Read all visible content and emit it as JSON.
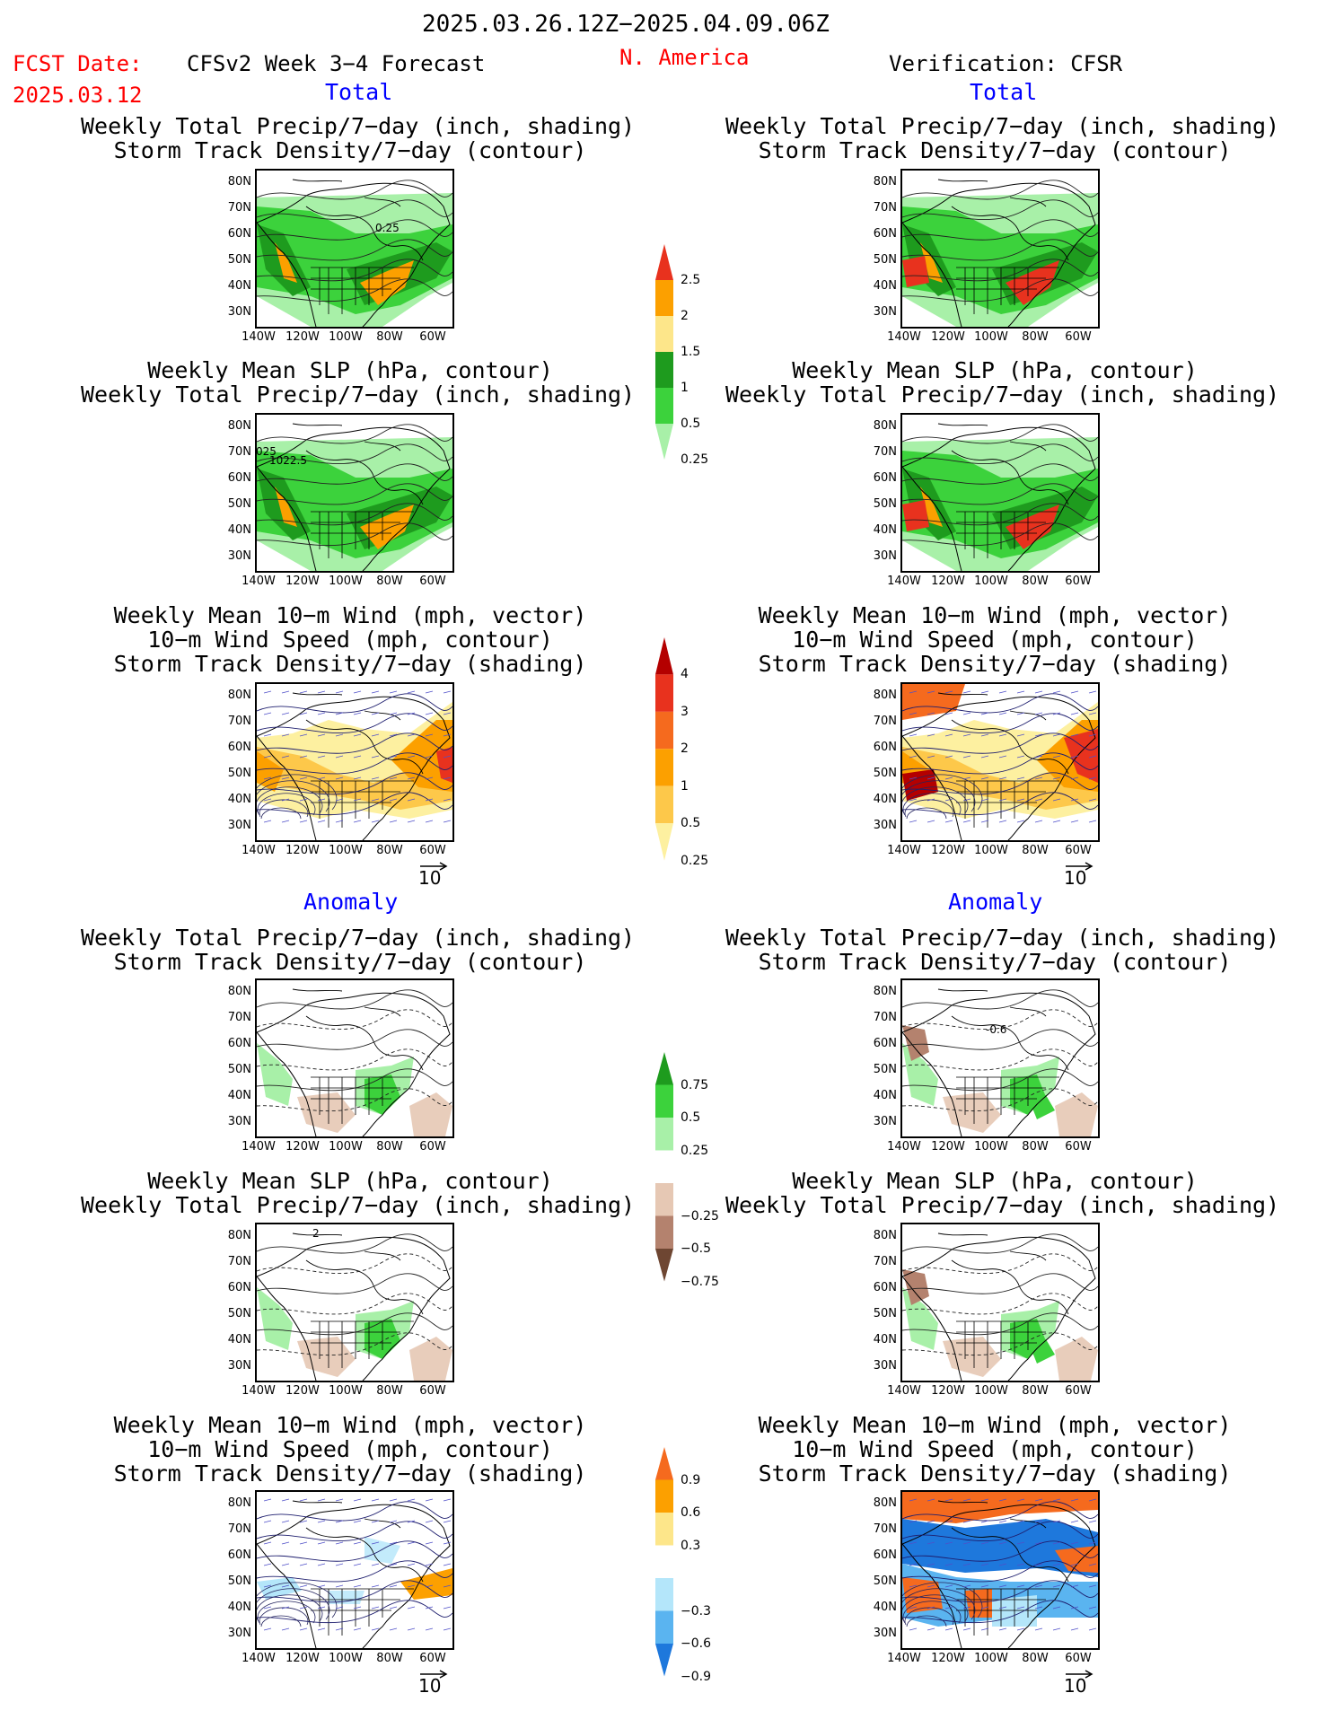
{
  "header": {
    "period": "2025.03.26.12Z−2025.04.09.06Z",
    "fcst_label": "FCST Date:",
    "fcst_date": "2025.03.12",
    "model": "CFSv2 Week 3−4 Forecast",
    "region": "N. America",
    "verification": "Verification: CFSR"
  },
  "sections": {
    "total": "Total",
    "anomaly": "Anomaly"
  },
  "titles": {
    "precip_storm": [
      "Weekly Total Precip/7−day (inch, shading)",
      "Storm Track Density/7−day (contour)"
    ],
    "slp_precip": [
      "Weekly Mean SLP (hPa, contour)",
      "Weekly Total Precip/7−day (inch, shading)"
    ],
    "wind": [
      "Weekly Mean 10−m Wind (mph, vector)",
      "10−m Wind Speed (mph, contour)",
      "Storm Track Density/7−day (shading)"
    ]
  },
  "axes": {
    "lat": [
      "80N",
      "70N",
      "60N",
      "50N",
      "40N",
      "30N"
    ],
    "lon": [
      "140W",
      "120W",
      "100W",
      "80W",
      "60W"
    ]
  },
  "ref_vector": "10",
  "map_labels": {
    "fcst_precip_contour": "0.25",
    "fcst_slp_contour": "1022.5",
    "fcst_slp_contour2": "025",
    "obs_anom_contour": "-0.6",
    "anom_slp_contour": "2"
  },
  "colorbars": {
    "precip_total": {
      "labels": [
        "2.5",
        "2",
        "1.5",
        "1",
        "0.5",
        "0.25"
      ],
      "colors": [
        "#e8321e",
        "#fca000",
        "#fde68a",
        "#1e9b1e",
        "#3cd23c",
        "#a8f0a8"
      ]
    },
    "storm_total": {
      "labels": [
        "4",
        "3",
        "2",
        "1",
        "0.5",
        "0.25"
      ],
      "colors": [
        "#b40000",
        "#e8321e",
        "#f56a1e",
        "#fca000",
        "#fdc84a",
        "#fdf0a0"
      ]
    },
    "precip_anom": {
      "labels": [
        "0.75",
        "0.5",
        "0.25",
        "−0.25",
        "−0.5",
        "−0.75"
      ],
      "colors": [
        "#1e9b1e",
        "#3cd23c",
        "#a8f0a8",
        "#ffffff",
        "#e6c8b4",
        "#b4826e",
        "#6e4632"
      ]
    },
    "storm_anom": {
      "labels": [
        "0.9",
        "0.6",
        "0.3",
        "−0.3",
        "−0.6",
        "−0.9"
      ],
      "colors": [
        "#f56a1e",
        "#fca000",
        "#fde68a",
        "#ffffff",
        "#b4e6fa",
        "#5ab4f0",
        "#1e78dc"
      ]
    }
  }
}
